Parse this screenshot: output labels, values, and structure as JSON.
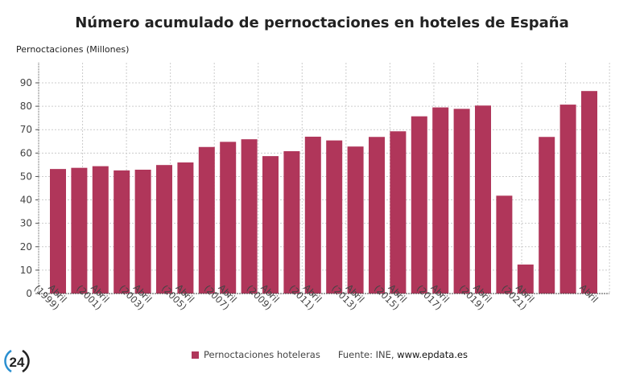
{
  "chart_data": {
    "type": "bar",
    "title": "Número acumulado de pernoctaciones en hoteles de España",
    "ylabel": "Pernoctaciones (Millones)",
    "xlabel": "",
    "ylim": [
      0,
      90
    ],
    "yticks": [
      0,
      10,
      20,
      30,
      40,
      50,
      60,
      70,
      80,
      90
    ],
    "grid": true,
    "legend_position": "bottom",
    "categories": [
      "Abril (1999)",
      "",
      "Abril (2001)",
      "",
      "Abril (2003)",
      "",
      "Abril (2005)",
      "",
      "Abril (2007)",
      "",
      "Abril (2009)",
      "",
      "Abril (2011)",
      "",
      "Abril (2013)",
      "",
      "Abril (2015)",
      "",
      "Abril (2017)",
      "",
      "Abril (2019)",
      "",
      "Abril (2021)",
      "",
      "",
      "Abril"
    ],
    "series": [
      {
        "name": "Pernoctaciones hoteleras",
        "color": "#b0365a",
        "values": [
          53.2,
          53.7,
          54.4,
          52.6,
          52.9,
          54.9,
          56.0,
          62.6,
          64.8,
          65.9,
          58.7,
          60.8,
          67.0,
          65.4,
          62.8,
          66.9,
          69.3,
          75.7,
          79.5,
          78.9,
          80.3,
          41.8,
          12.4,
          66.9,
          80.7,
          86.5
        ]
      }
    ]
  },
  "footer": {
    "source_prefix": "Fuente: INE, ",
    "source_link": "www.epdata.es",
    "logo_text": "24"
  }
}
